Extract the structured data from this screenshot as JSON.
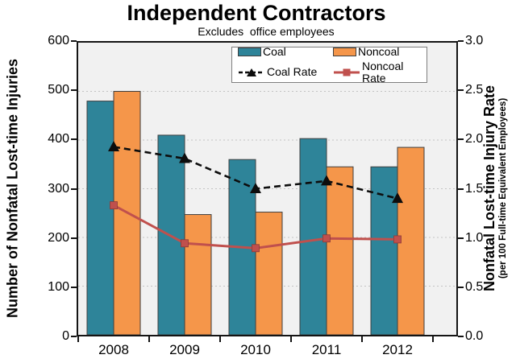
{
  "chart_data": {
    "type": "bar+line combo",
    "title": "Independent Contractors",
    "subtitle": "Excludes  office employees",
    "categories": [
      "2008",
      "2009",
      "2010",
      "2011",
      "2012"
    ],
    "series": [
      {
        "name": "Coal",
        "type": "bar",
        "axis": "left",
        "color": "#2E8499",
        "values": [
          480,
          410,
          360,
          403,
          345
        ]
      },
      {
        "name": "Noncoal",
        "type": "bar",
        "axis": "left",
        "color": "#F5964A",
        "values": [
          500,
          247,
          252,
          345,
          385
        ]
      },
      {
        "name": "Coal Rate",
        "type": "line",
        "axis": "right",
        "color": "#0D0D0D",
        "marker": "triangle",
        "dashed": true,
        "values": [
          1.93,
          1.81,
          1.5,
          1.58,
          1.4
        ]
      },
      {
        "name": "Noncoal Rate",
        "type": "line",
        "axis": "right",
        "color": "#C0504D",
        "marker": "square",
        "dashed": false,
        "values": [
          1.33,
          0.94,
          0.89,
          0.99,
          0.98
        ]
      }
    ],
    "left_axis": {
      "label": "Number of Nonfatal Lost-time Injuries",
      "min": 0,
      "max": 600,
      "tick_step": 100,
      "tick_labels": [
        "600",
        "500",
        "400",
        "300",
        "200",
        "100",
        "0"
      ]
    },
    "right_axis": {
      "label": "Nonfatal Lost-time Injury Rate",
      "sublabel": "(per 100 Full-time Equivalent Employees)",
      "min": 0,
      "max": 3.0,
      "tick_step": 0.5,
      "tick_labels": [
        "3.0",
        "2.5",
        "2.0",
        "1.5",
        "1.0",
        "0.5",
        "0.0"
      ]
    },
    "grid": "horizontal dotted major lines",
    "legend_position": "inside top-right, 2x2",
    "plot_background": "#F1F1F1",
    "gridline_color": "#C3C3C3",
    "bar_border_color": "#3F3F3F"
  }
}
